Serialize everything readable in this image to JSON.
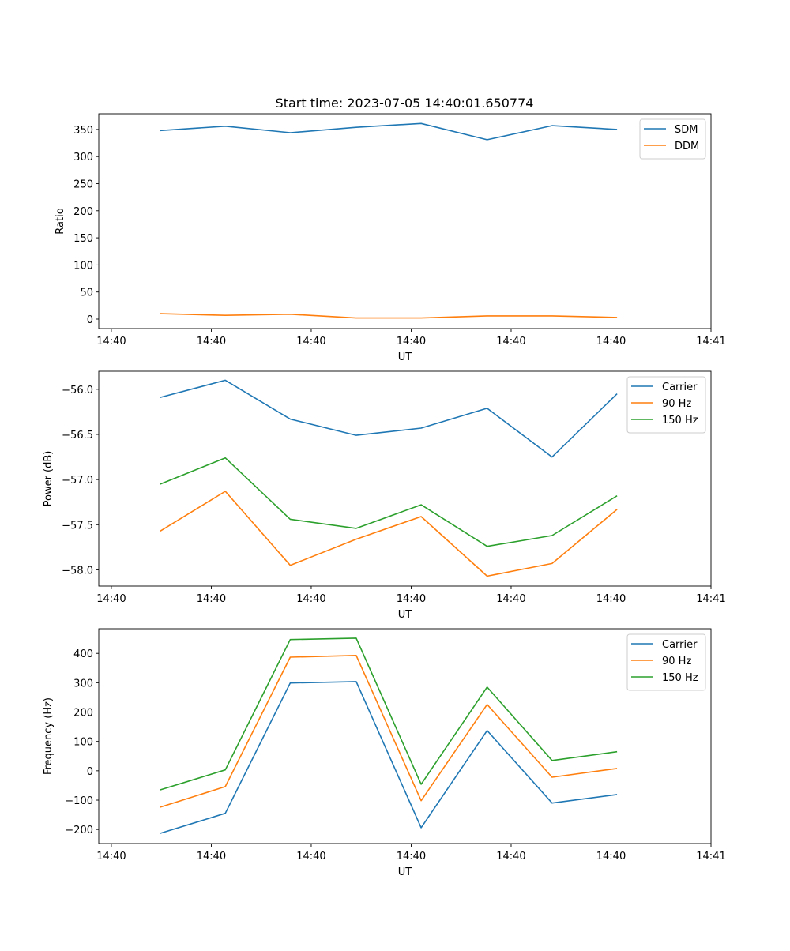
{
  "title": "Start time: 2023-07-05 14:40:01.650774",
  "colors": {
    "blue": "#1f77b4",
    "orange": "#ff7f0e",
    "green": "#2ca02c"
  },
  "chart_data": [
    {
      "type": "line",
      "xlabel": "UT",
      "ylabel": "Ratio",
      "x_seconds_after_1440": [
        4.9,
        11.4,
        17.9,
        24.5,
        31.0,
        37.6,
        44.1,
        50.6
      ],
      "xlim": [
        -1.26,
        60
      ],
      "xticks": [
        0,
        10,
        20,
        30,
        40,
        50,
        60
      ],
      "xtick_labels": [
        "14:40",
        "14:40",
        "14:40",
        "14:40",
        "14:40",
        "14:40",
        "14:41"
      ],
      "ylim": [
        -17.5,
        379
      ],
      "yticks": [
        0,
        50,
        100,
        150,
        200,
        250,
        300,
        350
      ],
      "ytick_labels": [
        "0",
        "50",
        "100",
        "150",
        "200",
        "250",
        "300",
        "350"
      ],
      "legend": "upper-right",
      "series": [
        {
          "name": "SDM",
          "color": "#1f77b4",
          "values": [
            348,
            356,
            344,
            354,
            361,
            331,
            357,
            350
          ]
        },
        {
          "name": "DDM",
          "color": "#ff7f0e",
          "values": [
            10,
            7,
            9,
            2,
            2,
            6,
            6,
            3
          ]
        }
      ]
    },
    {
      "type": "line",
      "xlabel": "UT",
      "ylabel": "Power (dB)",
      "x_seconds_after_1440": [
        4.9,
        11.4,
        17.9,
        24.5,
        31.0,
        37.6,
        44.1,
        50.6
      ],
      "xlim": [
        -1.26,
        60
      ],
      "xticks": [
        0,
        10,
        20,
        30,
        40,
        50,
        60
      ],
      "xtick_labels": [
        "14:40",
        "14:40",
        "14:40",
        "14:40",
        "14:40",
        "14:40",
        "14:41"
      ],
      "ylim": [
        -58.18,
        -55.8
      ],
      "yticks": [
        -56.0,
        -56.5,
        -57.0,
        -57.5,
        -58.0
      ],
      "ytick_labels": [
        "−56.0",
        "−56.5",
        "−57.0",
        "−57.5",
        "−58.0"
      ],
      "legend": "upper-right",
      "series": [
        {
          "name": "Carrier",
          "color": "#1f77b4",
          "values": [
            -56.09,
            -55.9,
            -56.33,
            -56.51,
            -56.43,
            -56.21,
            -56.75,
            -56.05
          ]
        },
        {
          "name": "90 Hz",
          "color": "#ff7f0e",
          "values": [
            -57.57,
            -57.13,
            -57.95,
            -57.66,
            -57.41,
            -58.07,
            -57.93,
            -57.33
          ]
        },
        {
          "name": "150 Hz",
          "color": "#2ca02c",
          "values": [
            -57.05,
            -56.76,
            -57.44,
            -57.54,
            -57.28,
            -57.74,
            -57.62,
            -57.18
          ]
        }
      ]
    },
    {
      "type": "line",
      "xlabel": "UT",
      "ylabel": "Frequency (Hz)",
      "x_seconds_after_1440": [
        4.9,
        11.4,
        17.9,
        24.5,
        31.0,
        37.6,
        44.1,
        50.6
      ],
      "xlim": [
        -1.26,
        60
      ],
      "xticks": [
        0,
        10,
        20,
        30,
        40,
        50,
        60
      ],
      "xtick_labels": [
        "14:40",
        "14:40",
        "14:40",
        "14:40",
        "14:40",
        "14:40",
        "14:41"
      ],
      "ylim": [
        -248,
        484
      ],
      "yticks": [
        -200,
        -100,
        0,
        100,
        200,
        300,
        400
      ],
      "ytick_labels": [
        "−200",
        "−100",
        "0",
        "100",
        "200",
        "300",
        "400"
      ],
      "legend": "upper-right",
      "series": [
        {
          "name": "Carrier",
          "color": "#1f77b4",
          "values": [
            -213,
            -145,
            299,
            304,
            -194,
            137,
            -110,
            -81
          ]
        },
        {
          "name": "90 Hz",
          "color": "#ff7f0e",
          "values": [
            -124,
            -54,
            387,
            393,
            -102,
            226,
            -22,
            8
          ]
        },
        {
          "name": "150 Hz",
          "color": "#2ca02c",
          "values": [
            -65,
            3,
            447,
            452,
            -46,
            285,
            35,
            65
          ]
        }
      ]
    }
  ]
}
